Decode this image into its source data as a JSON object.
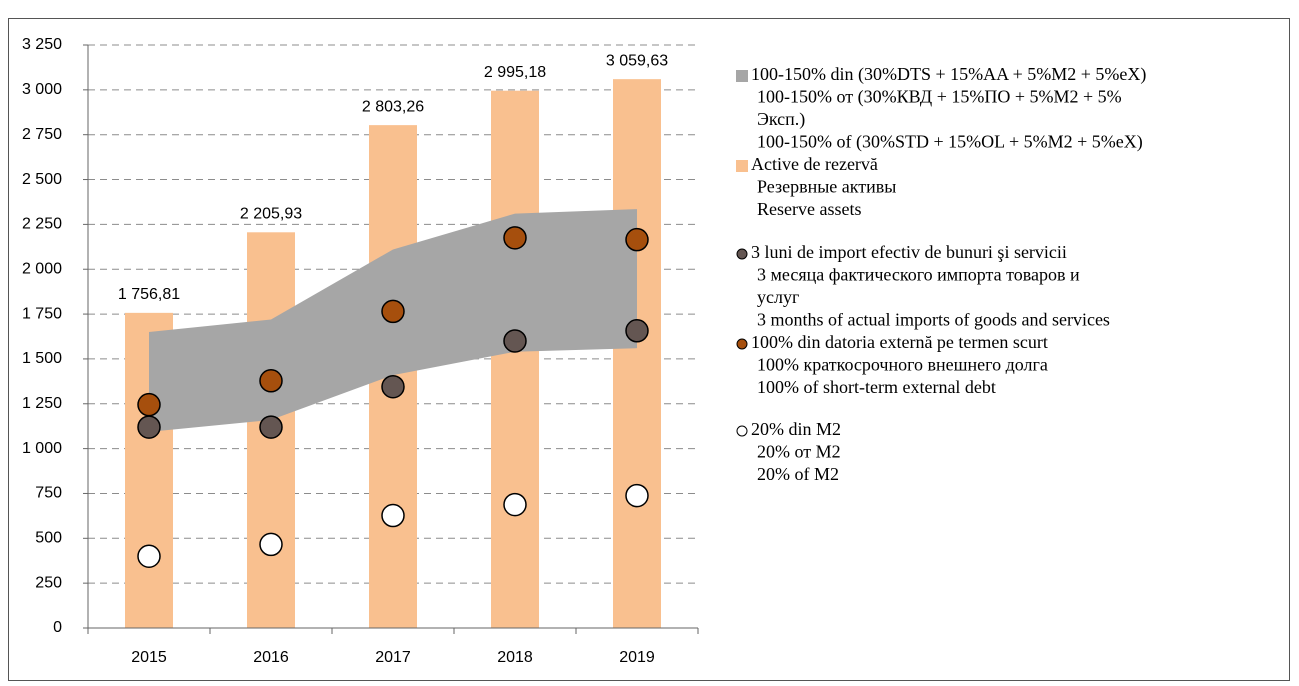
{
  "chart_data": {
    "type": "bar",
    "categories": [
      "2015",
      "2016",
      "2017",
      "2018",
      "2019"
    ],
    "ylim": [
      0,
      3250
    ],
    "yticks": [
      0,
      250,
      500,
      750,
      {
        "value": 1000,
        "label": "1 000"
      },
      {
        "value": 1250,
        "label": "1 250"
      },
      {
        "value": 1500,
        "label": "1 500"
      },
      {
        "value": 1750,
        "label": "1 750"
      },
      {
        "value": 2000,
        "label": "2 000"
      },
      {
        "value": 2250,
        "label": "2 250"
      },
      {
        "value": 2500,
        "label": "2 500"
      },
      {
        "value": 2750,
        "label": "2 750"
      },
      {
        "value": 3000,
        "label": "3 000"
      },
      {
        "value": 3250,
        "label": "3 250"
      }
    ],
    "grid": true,
    "legend": "right",
    "series": [
      {
        "kind": "band",
        "name": [
          "100-150% din (30%DTS + 15%AA + 5%M2 + 5%eX)",
          "100-150% от (30%КВД  + 15%ПО + 5%М2 + 5%",
          "Эксп.)",
          "100-150% of (30%STD + 15%OL + 5%M2 + 5%eX)"
        ],
        "color": "#a6a6a6",
        "low": [
          1093,
          1160,
          1410,
          1540,
          1560
        ],
        "high": [
          1650,
          1720,
          2110,
          2310,
          2335
        ]
      },
      {
        "kind": "bar",
        "name": [
          "Active de rezervă",
          "Резервные активы",
          "Reserve assets"
        ],
        "color": "#f9c08f",
        "values": [
          1756.81,
          2205.93,
          2803.26,
          2995.18,
          3059.63
        ],
        "value_labels": [
          "1 756,81",
          "2 205,93",
          "2 803,26",
          "2 995,18",
          "3 059,63"
        ]
      },
      {
        "kind": "dot",
        "name": [
          "3 luni de import efectiv de bunuri şi servicii",
          "3 месяца фактического импорта товаров и",
          "услуг",
          "3 months of actual imports of goods and services"
        ],
        "color": "#645652",
        "values": [
          1120,
          1120,
          1345,
          1600,
          1657
        ]
      },
      {
        "kind": "dot",
        "name": [
          "100% din datoria externă pe termen scurt",
          "100% краткосрочного внешнего долга",
          "100% of short-term external debt"
        ],
        "color": "#a64f0d",
        "values": [
          1245,
          1378,
          1765,
          2175,
          2165
        ]
      },
      {
        "kind": "dot",
        "name": [
          "20% din M2",
          "20% от M2",
          "20% of M2"
        ],
        "color": "#ffffff",
        "values": [
          400,
          466,
          627,
          688,
          738
        ]
      }
    ]
  }
}
